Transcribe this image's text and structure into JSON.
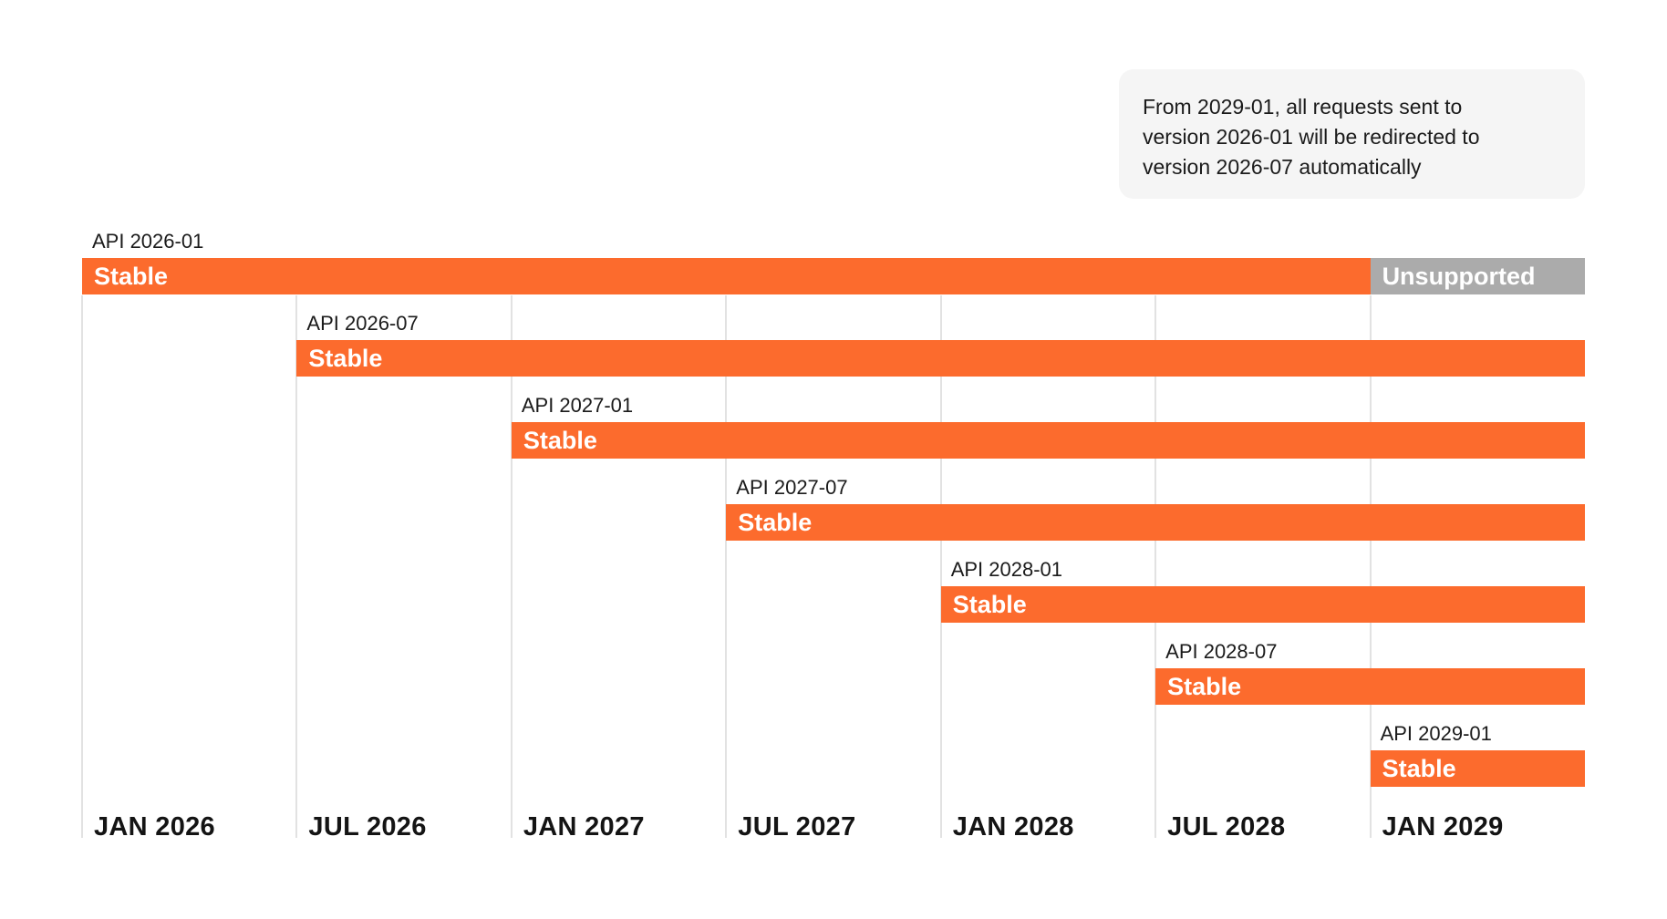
{
  "chart_data": {
    "type": "gantt",
    "note": {
      "lines": [
        "From 2029-01, all requests sent to",
        "version 2026-01 will be redirected to",
        "version 2026-07 automatically"
      ]
    },
    "x_ticks": [
      {
        "label": "JAN 2026",
        "value": "2026-01"
      },
      {
        "label": "JUL 2026",
        "value": "2026-07"
      },
      {
        "label": "JAN 2027",
        "value": "2027-01"
      },
      {
        "label": "JUL 2027",
        "value": "2027-07"
      },
      {
        "label": "JAN 2028",
        "value": "2028-01"
      },
      {
        "label": "JUL 2028",
        "value": "2028-07"
      },
      {
        "label": "JAN 2029",
        "value": "2029-01"
      }
    ],
    "axis_right_edge_value": "2029-07",
    "rows": [
      {
        "label": "API 2026-01",
        "segments": [
          {
            "state": "Stable",
            "start": "2026-01",
            "end": "2029-01"
          },
          {
            "state": "Unsupported",
            "start": "2029-01",
            "end": "2029-07"
          }
        ]
      },
      {
        "label": "API 2026-07",
        "segments": [
          {
            "state": "Stable",
            "start": "2026-07",
            "end": "2029-07"
          }
        ]
      },
      {
        "label": "API 2027-01",
        "segments": [
          {
            "state": "Stable",
            "start": "2027-01",
            "end": "2029-07"
          }
        ]
      },
      {
        "label": "API 2027-07",
        "segments": [
          {
            "state": "Stable",
            "start": "2027-07",
            "end": "2029-07"
          }
        ]
      },
      {
        "label": "API 2028-01",
        "segments": [
          {
            "state": "Stable",
            "start": "2028-01",
            "end": "2029-07"
          }
        ]
      },
      {
        "label": "API 2028-07",
        "segments": [
          {
            "state": "Stable",
            "start": "2028-07",
            "end": "2029-07"
          }
        ]
      },
      {
        "label": "API 2029-01",
        "segments": [
          {
            "state": "Stable",
            "start": "2029-01",
            "end": "2029-07"
          }
        ]
      }
    ],
    "colors": {
      "stable": "#FC6B2D",
      "unsupported": "#ABABAB",
      "gridline": "#E2E2E2",
      "note_bg": "#F5F5F5",
      "text": "#1B1B1B",
      "bar_text": "#FFFFFF"
    }
  }
}
